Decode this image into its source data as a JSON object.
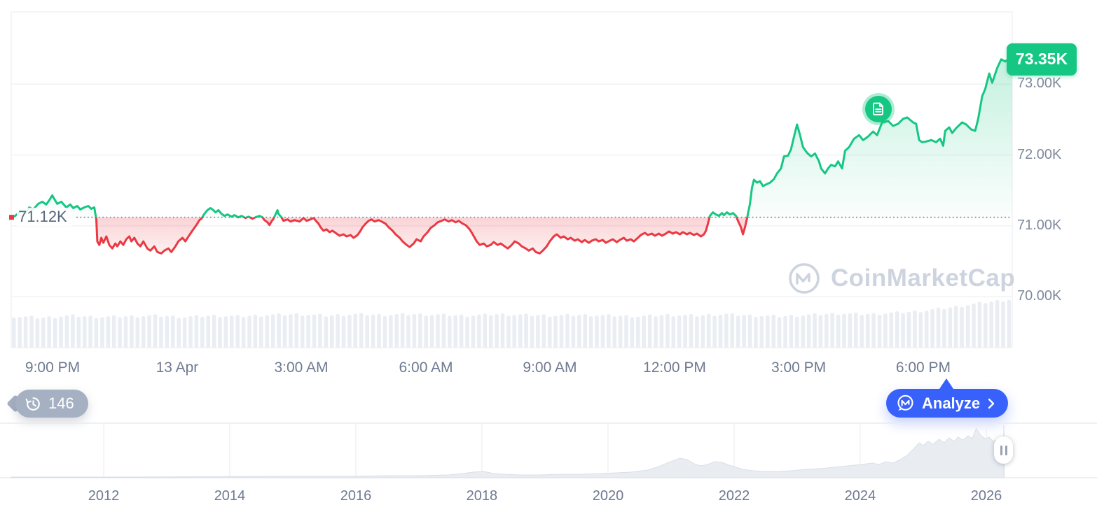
{
  "history_badge": {
    "count": "146"
  },
  "analyze_button": {
    "label": "Analyze"
  },
  "watermark": {
    "text": "CoinMarketCap"
  },
  "colors": {
    "up_green": "#16c784",
    "down_red": "#ea3943",
    "accent_blue": "#3861fb",
    "badge_gray": "#a6b0c3",
    "grid": "#f0f2f5",
    "axis_text": "#808a9d",
    "volume_bar": "#eaeef3",
    "nav_area": "#e9edf2"
  },
  "chart_data": {
    "type": "line",
    "title": "",
    "baseline": {
      "label": "71.12K",
      "value": 71.12
    },
    "current": {
      "label": "73.35K",
      "value": 73.35
    },
    "y_axis": {
      "ylim": [
        69.28,
        74.02
      ],
      "ticks": [
        {
          "label": "73.00K",
          "value": 73
        },
        {
          "label": "72.00K",
          "value": 72
        },
        {
          "label": "71.00K",
          "value": 71
        },
        {
          "label": "70.00K",
          "value": 70
        }
      ]
    },
    "x_axis": {
      "ticks": [
        {
          "label": "9:00 PM",
          "f": 0.0413
        },
        {
          "label": "13 Apr",
          "f": 0.1658
        },
        {
          "label": "3:00 AM",
          "f": 0.2897
        },
        {
          "label": "6:00 AM",
          "f": 0.4143
        },
        {
          "label": "9:00 AM",
          "f": 0.5381
        },
        {
          "label": "12:00 PM",
          "f": 0.6627
        },
        {
          "label": "3:00 PM",
          "f": 0.7866
        },
        {
          "label": "6:00 PM",
          "f": 0.9111
        }
      ]
    },
    "news_marker": {
      "f": 0.866,
      "price": 72.65
    },
    "price_series": [
      [
        0,
        71.12
      ],
      [
        0.004,
        71.14
      ],
      [
        0.01,
        71.21
      ],
      [
        0.014,
        71.18
      ],
      [
        0.018,
        71.26
      ],
      [
        0.022,
        71.23
      ],
      [
        0.027,
        71.31
      ],
      [
        0.031,
        71.34
      ],
      [
        0.035,
        71.3
      ],
      [
        0.038,
        71.36
      ],
      [
        0.041,
        71.43
      ],
      [
        0.043,
        71.38
      ],
      [
        0.046,
        71.31
      ],
      [
        0.05,
        71.34
      ],
      [
        0.055,
        71.26
      ],
      [
        0.059,
        71.3
      ],
      [
        0.062,
        71.25
      ],
      [
        0.066,
        71.28
      ],
      [
        0.069,
        71.23
      ],
      [
        0.073,
        71.26
      ],
      [
        0.077,
        71.28
      ],
      [
        0.08,
        71.24
      ],
      [
        0.083,
        71.26
      ],
      [
        0.085,
        71.09
      ],
      [
        0.086,
        70.78
      ],
      [
        0.088,
        70.73
      ],
      [
        0.09,
        70.83
      ],
      [
        0.092,
        70.76
      ],
      [
        0.095,
        70.85
      ],
      [
        0.098,
        70.73
      ],
      [
        0.101,
        70.68
      ],
      [
        0.104,
        70.75
      ],
      [
        0.106,
        70.71
      ],
      [
        0.109,
        70.78
      ],
      [
        0.112,
        70.73
      ],
      [
        0.115,
        70.81
      ],
      [
        0.118,
        70.85
      ],
      [
        0.12,
        70.78
      ],
      [
        0.123,
        70.83
      ],
      [
        0.126,
        70.75
      ],
      [
        0.129,
        70.71
      ],
      [
        0.132,
        70.78
      ],
      [
        0.136,
        70.68
      ],
      [
        0.139,
        70.65
      ],
      [
        0.143,
        70.71
      ],
      [
        0.146,
        70.63
      ],
      [
        0.15,
        70.61
      ],
      [
        0.153,
        70.65
      ],
      [
        0.157,
        70.68
      ],
      [
        0.16,
        70.63
      ],
      [
        0.164,
        70.71
      ],
      [
        0.167,
        70.78
      ],
      [
        0.171,
        70.83
      ],
      [
        0.174,
        70.78
      ],
      [
        0.178,
        70.87
      ],
      [
        0.181,
        70.93
      ],
      [
        0.185,
        71.01
      ],
      [
        0.188,
        71.08
      ],
      [
        0.19,
        71.1
      ],
      [
        0.193,
        71.17
      ],
      [
        0.196,
        71.22
      ],
      [
        0.199,
        71.25
      ],
      [
        0.202,
        71.22
      ],
      [
        0.204,
        71.19
      ],
      [
        0.207,
        71.22
      ],
      [
        0.21,
        71.17
      ],
      [
        0.213,
        71.14
      ],
      [
        0.216,
        71.16
      ],
      [
        0.22,
        71.13
      ],
      [
        0.223,
        71.15
      ],
      [
        0.227,
        71.12
      ],
      [
        0.23,
        71.14
      ],
      [
        0.234,
        71.11
      ],
      [
        0.237,
        71.13
      ],
      [
        0.241,
        71.1
      ],
      [
        0.244,
        71.12
      ],
      [
        0.248,
        71.14
      ],
      [
        0.251,
        71.12
      ],
      [
        0.253,
        71.08
      ],
      [
        0.256,
        71.05
      ],
      [
        0.258,
        71.01
      ],
      [
        0.26,
        71.06
      ],
      [
        0.262,
        71.1
      ],
      [
        0.264,
        71.16
      ],
      [
        0.266,
        71.22
      ],
      [
        0.267,
        71.17
      ],
      [
        0.27,
        71.12
      ],
      [
        0.272,
        71.07
      ],
      [
        0.276,
        71.09
      ],
      [
        0.279,
        71.06
      ],
      [
        0.283,
        71.08
      ],
      [
        0.288,
        71.06
      ],
      [
        0.292,
        71.11
      ],
      [
        0.295,
        71.07
      ],
      [
        0.299,
        71.09
      ],
      [
        0.302,
        71.11
      ],
      [
        0.305,
        71.06
      ],
      [
        0.307,
        71.03
      ],
      [
        0.309,
        70.98
      ],
      [
        0.312,
        70.93
      ],
      [
        0.315,
        70.95
      ],
      [
        0.318,
        70.91
      ],
      [
        0.321,
        70.93
      ],
      [
        0.325,
        70.89
      ],
      [
        0.328,
        70.86
      ],
      [
        0.332,
        70.88
      ],
      [
        0.335,
        70.85
      ],
      [
        0.339,
        70.87
      ],
      [
        0.342,
        70.83
      ],
      [
        0.346,
        70.87
      ],
      [
        0.349,
        70.93
      ],
      [
        0.351,
        70.98
      ],
      [
        0.354,
        71.03
      ],
      [
        0.357,
        71.07
      ],
      [
        0.36,
        71.09
      ],
      [
        0.363,
        71.06
      ],
      [
        0.367,
        71.08
      ],
      [
        0.37,
        71.06
      ],
      [
        0.374,
        71.03
      ],
      [
        0.377,
        70.98
      ],
      [
        0.381,
        70.93
      ],
      [
        0.384,
        70.88
      ],
      [
        0.388,
        70.83
      ],
      [
        0.391,
        70.78
      ],
      [
        0.395,
        70.73
      ],
      [
        0.398,
        70.7
      ],
      [
        0.402,
        70.75
      ],
      [
        0.405,
        70.81
      ],
      [
        0.409,
        70.78
      ],
      [
        0.412,
        70.85
      ],
      [
        0.416,
        70.91
      ],
      [
        0.419,
        70.97
      ],
      [
        0.423,
        71.01
      ],
      [
        0.426,
        71.05
      ],
      [
        0.43,
        71.07
      ],
      [
        0.433,
        71.09
      ],
      [
        0.437,
        71.06
      ],
      [
        0.44,
        71.08
      ],
      [
        0.444,
        71.05
      ],
      [
        0.447,
        71.07
      ],
      [
        0.451,
        71.03
      ],
      [
        0.454,
        71.01
      ],
      [
        0.458,
        70.95
      ],
      [
        0.461,
        70.88
      ],
      [
        0.465,
        70.78
      ],
      [
        0.468,
        70.73
      ],
      [
        0.472,
        70.75
      ],
      [
        0.475,
        70.71
      ],
      [
        0.479,
        70.73
      ],
      [
        0.482,
        70.77
      ],
      [
        0.486,
        70.73
      ],
      [
        0.489,
        70.75
      ],
      [
        0.493,
        70.71
      ],
      [
        0.496,
        70.68
      ],
      [
        0.5,
        70.73
      ],
      [
        0.503,
        70.78
      ],
      [
        0.507,
        70.75
      ],
      [
        0.51,
        70.71
      ],
      [
        0.514,
        70.68
      ],
      [
        0.517,
        70.65
      ],
      [
        0.521,
        70.68
      ],
      [
        0.524,
        70.63
      ],
      [
        0.528,
        70.61
      ],
      [
        0.531,
        70.65
      ],
      [
        0.535,
        70.71
      ],
      [
        0.538,
        70.78
      ],
      [
        0.542,
        70.85
      ],
      [
        0.545,
        70.88
      ],
      [
        0.549,
        70.83
      ],
      [
        0.552,
        70.85
      ],
      [
        0.556,
        70.81
      ],
      [
        0.559,
        70.83
      ],
      [
        0.563,
        70.79
      ],
      [
        0.566,
        70.81
      ],
      [
        0.57,
        70.77
      ],
      [
        0.573,
        70.8
      ],
      [
        0.577,
        70.76
      ],
      [
        0.58,
        70.79
      ],
      [
        0.584,
        70.81
      ],
      [
        0.587,
        70.78
      ],
      [
        0.591,
        70.8
      ],
      [
        0.594,
        70.76
      ],
      [
        0.598,
        70.79
      ],
      [
        0.601,
        70.81
      ],
      [
        0.605,
        70.77
      ],
      [
        0.608,
        70.8
      ],
      [
        0.612,
        70.83
      ],
      [
        0.615,
        70.79
      ],
      [
        0.619,
        70.81
      ],
      [
        0.622,
        70.78
      ],
      [
        0.626,
        70.83
      ],
      [
        0.629,
        70.87
      ],
      [
        0.633,
        70.9
      ],
      [
        0.636,
        70.87
      ],
      [
        0.64,
        70.89
      ],
      [
        0.643,
        70.86
      ],
      [
        0.647,
        70.89
      ],
      [
        0.65,
        70.86
      ],
      [
        0.654,
        70.89
      ],
      [
        0.657,
        70.92
      ],
      [
        0.661,
        70.89
      ],
      [
        0.664,
        70.91
      ],
      [
        0.668,
        70.88
      ],
      [
        0.671,
        70.91
      ],
      [
        0.675,
        70.88
      ],
      [
        0.678,
        70.9
      ],
      [
        0.682,
        70.87
      ],
      [
        0.685,
        70.89
      ],
      [
        0.689,
        70.85
      ],
      [
        0.692,
        70.88
      ],
      [
        0.694,
        70.93
      ],
      [
        0.696,
        71.03
      ],
      [
        0.698,
        71.14
      ],
      [
        0.701,
        71.19
      ],
      [
        0.704,
        71.16
      ],
      [
        0.707,
        71.14
      ],
      [
        0.71,
        71.18
      ],
      [
        0.712,
        71.15
      ],
      [
        0.715,
        71.19
      ],
      [
        0.718,
        71.16
      ],
      [
        0.721,
        71.18
      ],
      [
        0.724,
        71.14
      ],
      [
        0.726,
        71.07
      ],
      [
        0.729,
        70.98
      ],
      [
        0.731,
        70.88
      ],
      [
        0.733,
        70.98
      ],
      [
        0.735,
        71.1
      ],
      [
        0.738,
        71.31
      ],
      [
        0.74,
        71.54
      ],
      [
        0.742,
        71.65
      ],
      [
        0.745,
        71.61
      ],
      [
        0.748,
        71.63
      ],
      [
        0.751,
        71.56
      ],
      [
        0.755,
        71.59
      ],
      [
        0.758,
        71.61
      ],
      [
        0.762,
        71.66
      ],
      [
        0.765,
        71.74
      ],
      [
        0.769,
        71.81
      ],
      [
        0.772,
        71.98
      ],
      [
        0.776,
        71.99
      ],
      [
        0.779,
        72.08
      ],
      [
        0.782,
        72.26
      ],
      [
        0.785,
        72.43
      ],
      [
        0.788,
        72.28
      ],
      [
        0.791,
        72.11
      ],
      [
        0.795,
        72.03
      ],
      [
        0.799,
        71.98
      ],
      [
        0.803,
        72.02
      ],
      [
        0.807,
        71.91
      ],
      [
        0.809,
        71.81
      ],
      [
        0.813,
        71.74
      ],
      [
        0.816,
        71.81
      ],
      [
        0.819,
        71.86
      ],
      [
        0.823,
        71.84
      ],
      [
        0.826,
        71.91
      ],
      [
        0.83,
        71.81
      ],
      [
        0.833,
        72.06
      ],
      [
        0.837,
        72.11
      ],
      [
        0.842,
        72.23
      ],
      [
        0.847,
        72.28
      ],
      [
        0.851,
        72.21
      ],
      [
        0.856,
        72.26
      ],
      [
        0.861,
        72.33
      ],
      [
        0.865,
        72.28
      ],
      [
        0.87,
        72.46
      ],
      [
        0.876,
        72.48
      ],
      [
        0.881,
        72.41
      ],
      [
        0.886,
        72.44
      ],
      [
        0.891,
        72.51
      ],
      [
        0.895,
        72.53
      ],
      [
        0.901,
        72.46
      ],
      [
        0.904,
        72.44
      ],
      [
        0.907,
        72.21
      ],
      [
        0.91,
        72.18
      ],
      [
        0.914,
        72.19
      ],
      [
        0.919,
        72.21
      ],
      [
        0.924,
        72.18
      ],
      [
        0.928,
        72.23
      ],
      [
        0.931,
        72.13
      ],
      [
        0.933,
        72.34
      ],
      [
        0.937,
        72.39
      ],
      [
        0.94,
        72.31
      ],
      [
        0.944,
        72.38
      ],
      [
        0.95,
        72.46
      ],
      [
        0.954,
        72.43
      ],
      [
        0.959,
        72.36
      ],
      [
        0.963,
        72.34
      ],
      [
        0.966,
        72.51
      ],
      [
        0.97,
        72.83
      ],
      [
        0.973,
        72.93
      ],
      [
        0.977,
        73.15
      ],
      [
        0.98,
        73.02
      ],
      [
        0.985,
        73.23
      ],
      [
        0.989,
        73.35
      ],
      [
        0.993,
        73.32
      ],
      [
        0.996,
        73.35
      ],
      [
        1,
        73.35
      ]
    ],
    "volume_profile": [
      45,
      43,
      46,
      44,
      45,
      46,
      44,
      46,
      45,
      47,
      48,
      46,
      48,
      47,
      48,
      47,
      46,
      48,
      47,
      46,
      47,
      46,
      45,
      47,
      46,
      48,
      46,
      45,
      47,
      49,
      48,
      50,
      53,
      58,
      64,
      69
    ],
    "navigator": {
      "type": "area",
      "year_ticks": [
        {
          "label": "2012",
          "f": 0.0924
        },
        {
          "label": "2014",
          "f": 0.2183
        },
        {
          "label": "2016",
          "f": 0.3443
        },
        {
          "label": "2018",
          "f": 0.4702
        },
        {
          "label": "2020",
          "f": 0.5962
        },
        {
          "label": "2022",
          "f": 0.7222
        },
        {
          "label": "2024",
          "f": 0.8481
        },
        {
          "label": "2026",
          "f": 0.9741
        }
      ],
      "selection_f": 0.9916,
      "points": [
        [
          0,
          1
        ],
        [
          0.059,
          1
        ],
        [
          0.129,
          1
        ],
        [
          0.199,
          1.5
        ],
        [
          0.269,
          2
        ],
        [
          0.339,
          2
        ],
        [
          0.381,
          3
        ],
        [
          0.409,
          3
        ],
        [
          0.437,
          4
        ],
        [
          0.451,
          6
        ],
        [
          0.461,
          8
        ],
        [
          0.472,
          9
        ],
        [
          0.482,
          6
        ],
        [
          0.493,
          5
        ],
        [
          0.507,
          4
        ],
        [
          0.528,
          4
        ],
        [
          0.549,
          5
        ],
        [
          0.57,
          5
        ],
        [
          0.591,
          6
        ],
        [
          0.619,
          8
        ],
        [
          0.636,
          11
        ],
        [
          0.647,
          16
        ],
        [
          0.657,
          22
        ],
        [
          0.668,
          28
        ],
        [
          0.675,
          26
        ],
        [
          0.682,
          20
        ],
        [
          0.689,
          17
        ],
        [
          0.696,
          19
        ],
        [
          0.703,
          23
        ],
        [
          0.71,
          22
        ],
        [
          0.717,
          18
        ],
        [
          0.724,
          15
        ],
        [
          0.731,
          12
        ],
        [
          0.741,
          10
        ],
        [
          0.752,
          9
        ],
        [
          0.766,
          9
        ],
        [
          0.78,
          10
        ],
        [
          0.794,
          12
        ],
        [
          0.808,
          13
        ],
        [
          0.822,
          15
        ],
        [
          0.836,
          17
        ],
        [
          0.85,
          19
        ],
        [
          0.86,
          21
        ],
        [
          0.867,
          19
        ],
        [
          0.874,
          23
        ],
        [
          0.881,
          21
        ],
        [
          0.888,
          26
        ],
        [
          0.895,
          32
        ],
        [
          0.902,
          42
        ],
        [
          0.907,
          50
        ],
        [
          0.911,
          46
        ],
        [
          0.916,
          52
        ],
        [
          0.921,
          48
        ],
        [
          0.927,
          55
        ],
        [
          0.932,
          50
        ],
        [
          0.937,
          57
        ],
        [
          0.942,
          52
        ],
        [
          0.946,
          58
        ],
        [
          0.951,
          54
        ],
        [
          0.956,
          60
        ],
        [
          0.96,
          56
        ],
        [
          0.964,
          70
        ],
        [
          0.969,
          60
        ],
        [
          0.973,
          56
        ],
        [
          0.977,
          58
        ],
        [
          0.981,
          52
        ],
        [
          0.985,
          54
        ],
        [
          0.989,
          56
        ],
        [
          0.992,
          52
        ]
      ]
    }
  }
}
